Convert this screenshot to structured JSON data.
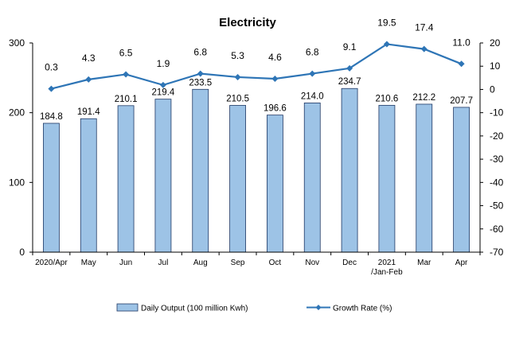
{
  "chart_data": {
    "type": "bar",
    "title": "Electricity",
    "categories": [
      {
        "line1": "2020/Apr",
        "line2": ""
      },
      {
        "line1": "May",
        "line2": ""
      },
      {
        "line1": "Jun",
        "line2": ""
      },
      {
        "line1": "Jul",
        "line2": ""
      },
      {
        "line1": "Aug",
        "line2": ""
      },
      {
        "line1": "Sep",
        "line2": ""
      },
      {
        "line1": "Oct",
        "line2": ""
      },
      {
        "line1": "Nov",
        "line2": ""
      },
      {
        "line1": "Dec",
        "line2": ""
      },
      {
        "line1": "2021",
        "line2": "/Jan-Feb"
      },
      {
        "line1": "Mar",
        "line2": ""
      },
      {
        "line1": "Apr",
        "line2": ""
      }
    ],
    "series": [
      {
        "name": "Daily Output (100 million Kwh)",
        "type": "bar",
        "axis": "left",
        "color": "#9DC3E6",
        "border_color": "#1F3864",
        "values": [
          184.8,
          191.4,
          210.1,
          219.4,
          233.5,
          210.5,
          196.6,
          214.0,
          234.7,
          210.6,
          212.2,
          207.7
        ],
        "labels": [
          "184.8",
          "191.4",
          "210.1",
          "219.4",
          "233.5",
          "210.5",
          "196.6",
          "214.0",
          "234.7",
          "210.6",
          "212.2",
          "207.7"
        ]
      },
      {
        "name": "Growth Rate (%)",
        "type": "line",
        "axis": "right",
        "color": "#2E75B6",
        "values": [
          0.3,
          4.3,
          6.5,
          1.9,
          6.8,
          5.3,
          4.6,
          6.8,
          9.1,
          19.5,
          17.4,
          11.0
        ],
        "labels": [
          "0.3",
          "4.3",
          "6.5",
          "1.9",
          "6.8",
          "5.3",
          "4.6",
          "6.8",
          "9.1",
          "19.5",
          "17.4",
          "11.0"
        ]
      }
    ],
    "left_axis": {
      "min": 0,
      "max": 300,
      "ticks": [
        0,
        100,
        200,
        300
      ]
    },
    "right_axis": {
      "min": -70,
      "max": 20,
      "ticks": [
        20,
        10,
        0,
        -10,
        -20,
        -30,
        -40,
        -50,
        -60,
        -70
      ]
    },
    "grid": false,
    "legend_position": "bottom"
  }
}
